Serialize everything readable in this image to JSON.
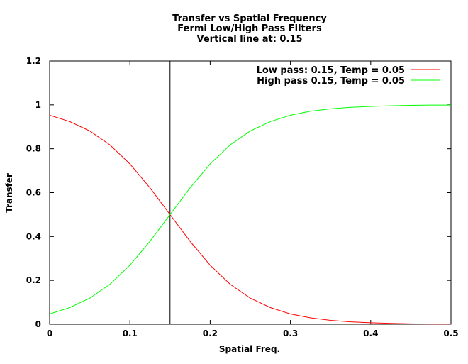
{
  "chart_data": {
    "type": "line",
    "title_lines": [
      "Transfer vs Spatial Frequency",
      "Fermi Low/High Pass Filters",
      "Vertical line at: 0.15"
    ],
    "xlabel": "Spatial Freq.",
    "ylabel": "Transfer",
    "xlim": [
      0,
      0.5
    ],
    "ylim": [
      0,
      1.2
    ],
    "xticks": [
      0,
      0.1,
      0.2,
      0.3,
      0.4,
      0.5
    ],
    "xtick_labels": [
      "0",
      "0.1",
      "0.2",
      "0.3",
      "0.4",
      "0.5"
    ],
    "yticks": [
      0,
      0.2,
      0.4,
      0.6,
      0.8,
      1,
      1.2
    ],
    "ytick_labels": [
      "0",
      "0.2",
      "0.4",
      "0.6",
      "0.8",
      "1",
      "1.2"
    ],
    "grid": false,
    "legend_position": "top-right",
    "vertical_line_x": 0.15,
    "vertical_line_color": "#000000",
    "x": [
      0,
      0.025,
      0.05,
      0.075,
      0.1,
      0.125,
      0.15,
      0.175,
      0.2,
      0.225,
      0.25,
      0.275,
      0.3,
      0.325,
      0.35,
      0.375,
      0.4,
      0.425,
      0.45,
      0.475,
      0.5
    ],
    "series": [
      {
        "name": "Low pass:  0.15, Temp = 0.05",
        "color": "#ff0000",
        "values": [
          0.953,
          0.924,
          0.881,
          0.818,
          0.731,
          0.622,
          0.5,
          0.378,
          0.269,
          0.182,
          0.119,
          0.076,
          0.047,
          0.029,
          0.018,
          0.011,
          0.007,
          0.004,
          0.002,
          0.001,
          0.001
        ]
      },
      {
        "name": "High pass  0.15, Temp = 0.05",
        "color": "#00ff00",
        "values": [
          0.047,
          0.076,
          0.119,
          0.182,
          0.269,
          0.378,
          0.5,
          0.622,
          0.731,
          0.818,
          0.881,
          0.924,
          0.953,
          0.971,
          0.982,
          0.989,
          0.993,
          0.996,
          0.998,
          0.999,
          0.999
        ]
      }
    ]
  }
}
